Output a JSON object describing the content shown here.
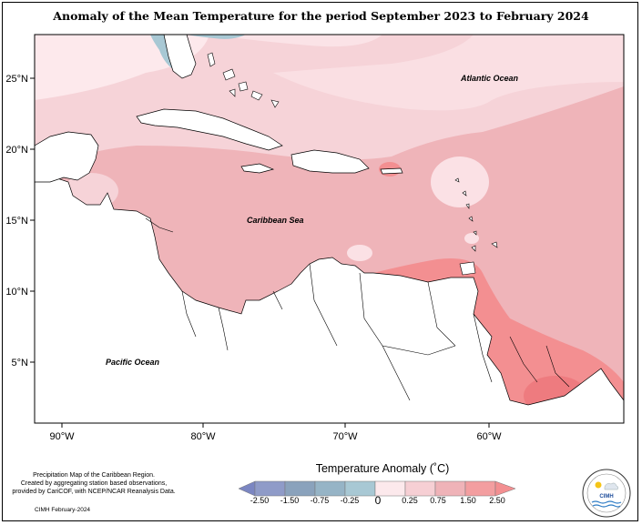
{
  "title": "Anomaly of the Mean Temperature for the period September 2023 to February 2024",
  "axes": {
    "lat_labels": [
      "25°N",
      "20°N",
      "15°N",
      "10°N",
      "5°N"
    ],
    "lon_labels": [
      "90°W",
      "80°W",
      "70°W",
      "60°W"
    ]
  },
  "map_labels": {
    "atlantic": "Atlantic Ocean",
    "caribbean": "Caribbean Sea",
    "pacific": "Pacific Ocean"
  },
  "colorbar": {
    "title": "Temperature Anomaly (˚C)",
    "ticks": [
      "-2.50",
      "-1.50",
      "-0.75",
      "-0.25",
      "0",
      "0.25",
      "0.75",
      "1.50",
      "2.50"
    ],
    "colors": [
      "#7b86c2",
      "#8f9bc8",
      "#8aa2bc",
      "#a8c8d4",
      "#fce9ec",
      "#f6cfd4",
      "#efb3b8",
      "#f38f91"
    ]
  },
  "footer": {
    "line1": "Precipitation Map of the Caribbean Region.",
    "line2": "Created by aggregating station based observations,",
    "line3": "provided by CariCOF, with NCEP/NCAR Reanalysis Data.",
    "date": "CIMH February-2024"
  },
  "logo": {
    "name": "CIMH"
  }
}
